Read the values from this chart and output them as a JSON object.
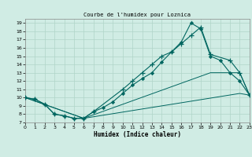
{
  "title": "Courbe de l'humidex pour Loznica",
  "xlabel": "Humidex (Indice chaleur)",
  "xlim": [
    0,
    23
  ],
  "ylim": [
    7,
    19.5
  ],
  "xticks": [
    0,
    1,
    2,
    3,
    4,
    5,
    6,
    7,
    8,
    9,
    10,
    11,
    12,
    13,
    14,
    15,
    16,
    17,
    18,
    19,
    20,
    21,
    22,
    23
  ],
  "yticks": [
    7,
    8,
    9,
    10,
    11,
    12,
    13,
    14,
    15,
    16,
    17,
    18,
    19
  ],
  "background_color": "#d0ece4",
  "grid_color": "#b0d4c8",
  "line_color": "#006660",
  "line1_x": [
    0,
    1,
    2,
    3,
    4,
    5,
    6,
    7,
    8,
    9,
    10,
    11,
    12,
    13,
    14,
    15,
    16,
    17,
    18,
    19,
    20,
    21,
    22,
    23
  ],
  "line1_y": [
    10,
    9.8,
    9.2,
    8.0,
    7.8,
    7.5,
    7.5,
    8.3,
    8.8,
    9.5,
    10.5,
    11.5,
    12.3,
    13.0,
    14.3,
    15.5,
    16.7,
    19.0,
    18.3,
    15.0,
    14.5,
    13.0,
    12.0,
    10.3
  ],
  "line2_x": [
    0,
    1,
    2,
    3,
    4,
    5,
    6,
    7,
    10,
    11,
    12,
    13,
    14,
    15,
    16,
    17,
    18,
    19,
    21,
    22,
    23
  ],
  "line2_y": [
    10,
    9.8,
    9.2,
    8.0,
    7.8,
    7.5,
    7.5,
    8.3,
    11.0,
    12.0,
    13.0,
    14.0,
    15.0,
    15.5,
    16.5,
    17.5,
    18.5,
    15.2,
    14.5,
    13.0,
    10.3
  ],
  "line3_x": [
    0,
    6,
    19,
    22,
    23
  ],
  "line3_y": [
    10,
    7.5,
    13.0,
    13.0,
    10.3
  ],
  "line4_x": [
    0,
    6,
    22,
    23
  ],
  "line4_y": [
    10,
    7.5,
    10.5,
    10.3
  ]
}
